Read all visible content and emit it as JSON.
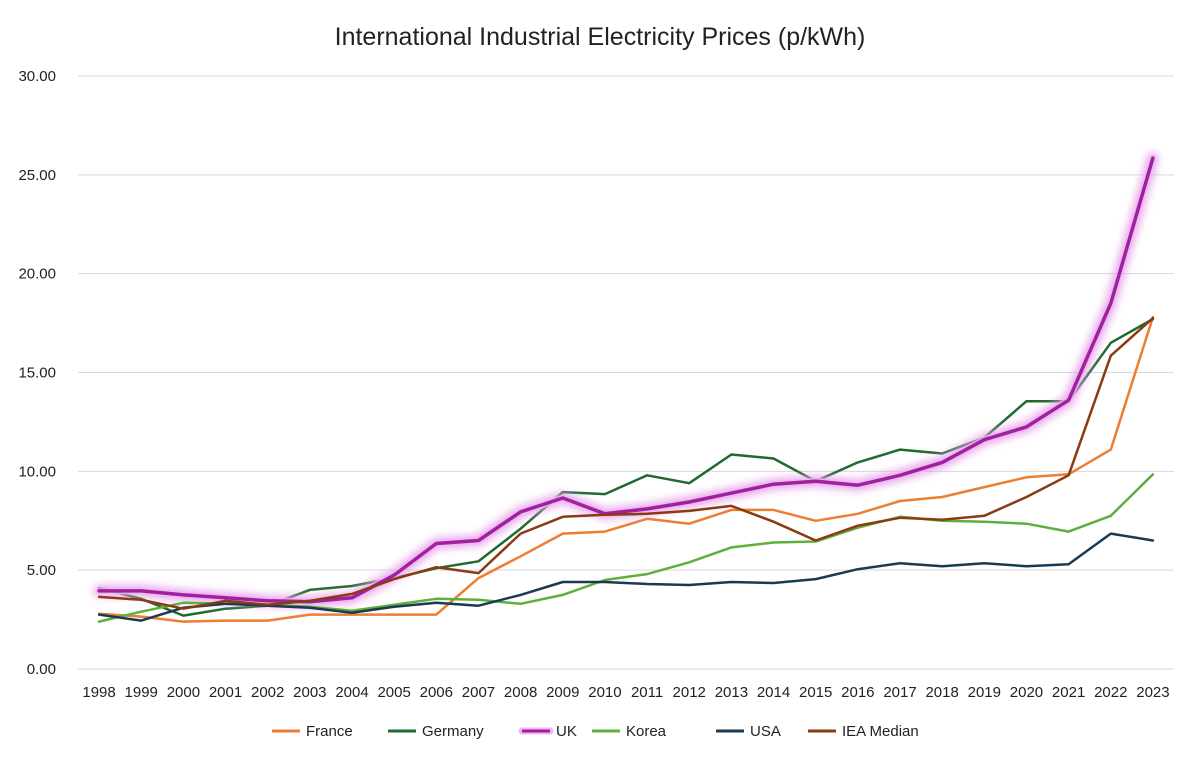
{
  "chart_data": {
    "type": "line",
    "title": "International Industrial Electricity Prices (p/kWh)",
    "xlabel": "",
    "ylabel": "",
    "ylim": [
      0,
      30
    ],
    "yticks": [
      "0.00",
      "5.00",
      "10.00",
      "15.00",
      "20.00",
      "25.00",
      "30.00"
    ],
    "grid": true,
    "legend_position": "bottom",
    "categories": [
      "1998",
      "1999",
      "2000",
      "2001",
      "2002",
      "2003",
      "2004",
      "2005",
      "2006",
      "2007",
      "2008",
      "2009",
      "2010",
      "2011",
      "2012",
      "2013",
      "2014",
      "2015",
      "2016",
      "2017",
      "2018",
      "2019",
      "2020",
      "2021",
      "2022",
      "2023"
    ],
    "series": [
      {
        "name": "France",
        "color": "#ed7d31",
        "values": [
          2.8,
          2.65,
          2.4,
          2.45,
          2.45,
          2.75,
          2.75,
          2.75,
          2.75,
          4.6,
          5.7,
          6.85,
          6.95,
          7.6,
          7.35,
          8.05,
          8.05,
          7.5,
          7.85,
          8.5,
          8.7,
          9.2,
          9.7,
          9.85,
          11.1,
          17.8
        ]
      },
      {
        "name": "Germany",
        "color": "#1e6b2e",
        "values": [
          4.1,
          3.55,
          2.7,
          3.05,
          3.2,
          4.0,
          4.2,
          4.6,
          5.1,
          5.45,
          7.1,
          8.95,
          8.85,
          9.8,
          9.4,
          10.85,
          10.65,
          9.5,
          10.45,
          11.1,
          10.9,
          11.7,
          13.55,
          13.55,
          16.5,
          17.7
        ]
      },
      {
        "name": "UK",
        "color": "#a020a0",
        "glow": true,
        "values": [
          3.95,
          3.95,
          3.75,
          3.6,
          3.45,
          3.4,
          3.6,
          4.75,
          6.35,
          6.5,
          7.95,
          8.65,
          7.85,
          8.1,
          8.45,
          8.9,
          9.35,
          9.5,
          9.3,
          9.8,
          10.45,
          11.6,
          12.25,
          13.6,
          18.5,
          25.85
        ]
      },
      {
        "name": "Korea",
        "color": "#5faf3c",
        "values": [
          2.4,
          2.9,
          3.35,
          3.3,
          3.25,
          3.15,
          2.95,
          3.25,
          3.55,
          3.5,
          3.3,
          3.75,
          4.5,
          4.8,
          5.4,
          6.15,
          6.4,
          6.45,
          7.15,
          7.7,
          7.5,
          7.45,
          7.35,
          6.95,
          7.75,
          9.85
        ]
      },
      {
        "name": "USA",
        "color": "#1a3a52",
        "values": [
          2.75,
          2.45,
          3.1,
          3.3,
          3.2,
          3.1,
          2.85,
          3.15,
          3.35,
          3.2,
          3.75,
          4.4,
          4.4,
          4.3,
          4.25,
          4.4,
          4.35,
          4.55,
          5.05,
          5.35,
          5.2,
          5.35,
          5.2,
          5.3,
          6.85,
          6.5
        ]
      },
      {
        "name": "IEA Median",
        "color": "#8b3a12",
        "values": [
          3.65,
          3.5,
          3.05,
          3.45,
          3.25,
          3.45,
          3.8,
          4.55,
          5.15,
          4.85,
          6.85,
          7.7,
          7.8,
          7.85,
          8.0,
          8.25,
          7.45,
          6.5,
          7.25,
          7.65,
          7.55,
          7.75,
          8.7,
          9.8,
          15.85,
          17.75
        ]
      }
    ]
  }
}
